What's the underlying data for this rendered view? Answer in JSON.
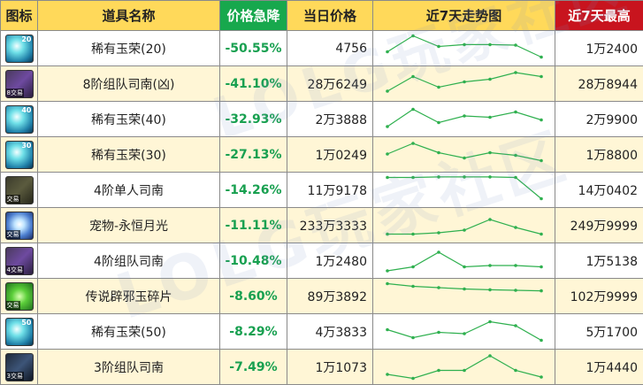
{
  "headers": {
    "icon": "图标",
    "name": "道具名称",
    "drop": "价格急降",
    "price": "当日价格",
    "trend": "近7天走势图",
    "high": "近7天最高"
  },
  "colors": {
    "header_bg": "#ffd95a",
    "drop_header_bg": "#17a84d",
    "high_header_bg": "#c8141e",
    "row_alt_bg": "#fff6d6",
    "drop_text": "#18a050",
    "trend_line": "#2fb04f"
  },
  "watermark": "LOLG玩家社区",
  "rows": [
    {
      "icon": "gem-icon",
      "icon_class": "gem",
      "level": "20",
      "tradable": "",
      "name": "稀有玉荣(20)",
      "drop": "-50.55%",
      "price": "4756",
      "high": "1万2400",
      "trend": [
        0.35,
        0.95,
        0.55,
        0.62,
        0.62,
        0.6,
        0.15
      ]
    },
    {
      "icon": "compass-icon",
      "icon_class": "compass",
      "level": "",
      "tradable": "8交易",
      "name": "8阶组队司南(凶)",
      "drop": "-41.10%",
      "price": "28万6249",
      "high": "28万8944",
      "trend": [
        0.2,
        0.75,
        0.35,
        0.55,
        0.65,
        0.9,
        0.75
      ]
    },
    {
      "icon": "gem-icon",
      "icon_class": "gem",
      "level": "40",
      "tradable": "",
      "name": "稀有玉荣(40)",
      "drop": "-32.93%",
      "price": "2万3888",
      "high": "2万9900",
      "trend": [
        0.2,
        0.85,
        0.35,
        0.6,
        0.55,
        0.75,
        0.45
      ]
    },
    {
      "icon": "gem-icon",
      "icon_class": "gem",
      "level": "30",
      "tradable": "",
      "name": "稀有玉荣(30)",
      "drop": "-27.13%",
      "price": "1万0249",
      "high": "1万8800",
      "trend": [
        0.5,
        0.9,
        0.55,
        0.35,
        0.55,
        0.45,
        0.25
      ]
    },
    {
      "icon": "compass-d-icon",
      "icon_class": "compass-d",
      "level": "",
      "tradable": "交易",
      "name": "4阶单人司南",
      "drop": "-14.26%",
      "price": "11万9178",
      "high": "14万0402",
      "trend": [
        0.95,
        0.95,
        0.97,
        0.97,
        0.97,
        0.95,
        0.15
      ]
    },
    {
      "icon": "pet-icon",
      "icon_class": "pet",
      "level": "",
      "tradable": "交易",
      "name": "宠物-永恒月光",
      "drop": "-11.11%",
      "price": "233万3333",
      "high": "249万9999",
      "trend": [
        0.15,
        0.15,
        0.2,
        0.3,
        0.7,
        0.4,
        0.15
      ]
    },
    {
      "icon": "compass-icon",
      "icon_class": "compass",
      "level": "",
      "tradable": "4交易",
      "name": "4阶组队司南",
      "drop": "-10.48%",
      "price": "1万2480",
      "high": "1万5138",
      "trend": [
        0.1,
        0.25,
        0.8,
        0.25,
        0.3,
        0.3,
        0.25
      ]
    },
    {
      "icon": "jade-icon",
      "icon_class": "jade",
      "level": "",
      "tradable": "交易",
      "name": "传说辟邪玉碎片",
      "drop": "-8.60%",
      "price": "89万3892",
      "high": "102万9999",
      "trend": [
        0.95,
        0.85,
        0.8,
        0.75,
        0.72,
        0.7,
        0.68
      ]
    },
    {
      "icon": "gem-icon",
      "icon_class": "gem",
      "level": "50",
      "tradable": "",
      "name": "稀有玉荣(50)",
      "drop": "-8.29%",
      "price": "4万3833",
      "high": "5万1700",
      "trend": [
        0.55,
        0.25,
        0.45,
        0.4,
        0.85,
        0.7,
        0.15
      ]
    },
    {
      "icon": "spark-icon",
      "icon_class": "spark",
      "level": "",
      "tradable": "3交易",
      "name": "3阶组队司南",
      "drop": "-7.49%",
      "price": "1万1073",
      "high": "1万4440",
      "trend": [
        0.2,
        0.05,
        0.35,
        0.35,
        0.9,
        0.35,
        0.1
      ]
    }
  ]
}
